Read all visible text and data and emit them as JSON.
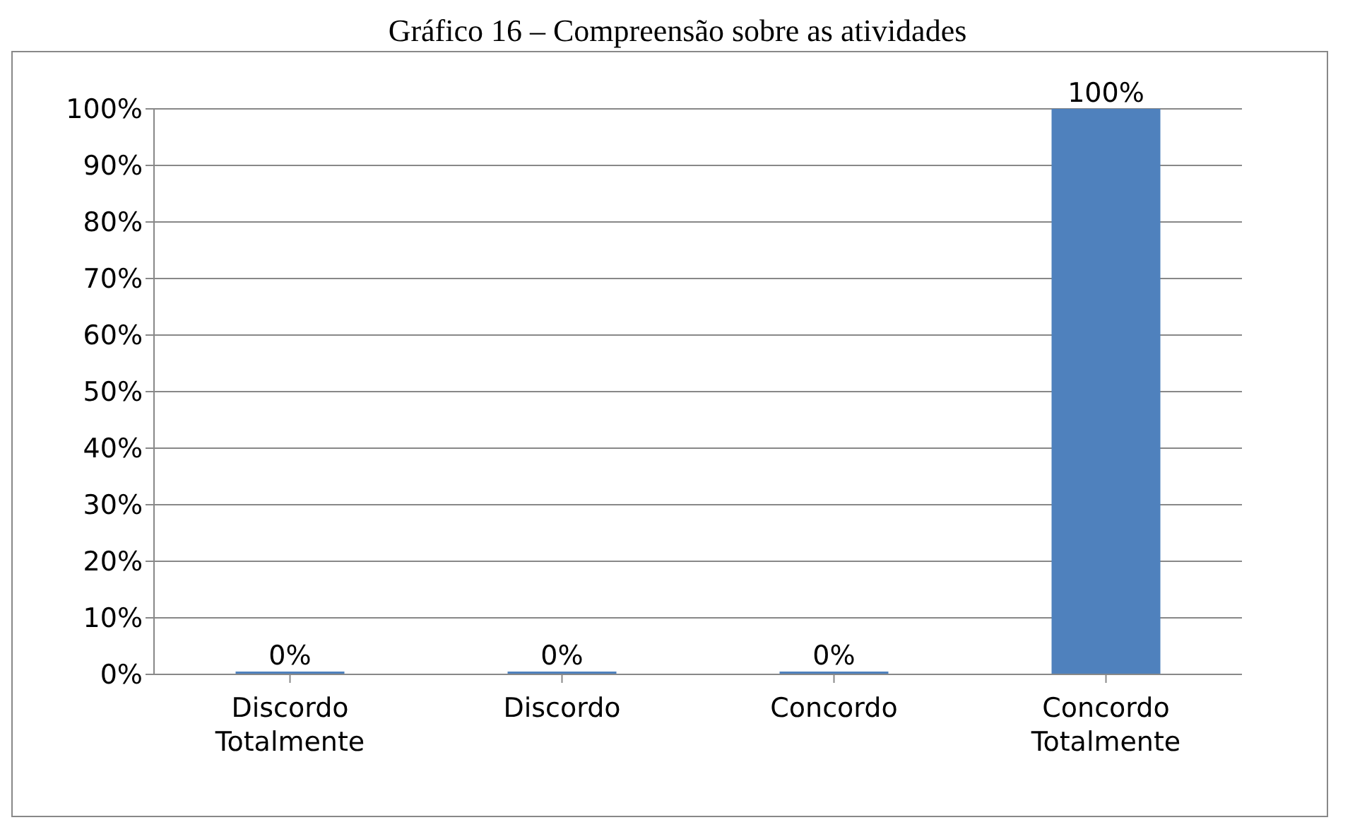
{
  "chart_data": {
    "type": "bar",
    "title": "Gráfico 16 – Compreensão sobre as atividades",
    "categories": [
      "Discordo Totalmente",
      "Discordo",
      "Concordo",
      "Concordo Totalmente"
    ],
    "values": [
      0,
      0,
      0,
      100
    ],
    "color": "#4f81bd",
    "value_labels": [
      "0%",
      "0%",
      "0%",
      "100%"
    ],
    "ylim": [
      0,
      100
    ],
    "yticks": [
      {
        "value": 0,
        "label": "0%"
      },
      {
        "value": 10,
        "label": "10%"
      },
      {
        "value": 20,
        "label": "20%"
      },
      {
        "value": 30,
        "label": "30%"
      },
      {
        "value": 40,
        "label": "40%"
      },
      {
        "value": 50,
        "label": "50%"
      },
      {
        "value": 60,
        "label": "60%"
      },
      {
        "value": 70,
        "label": "70%"
      },
      {
        "value": 80,
        "label": "80%"
      },
      {
        "value": 90,
        "label": "90%"
      },
      {
        "value": 100,
        "label": "100%"
      }
    ],
    "grid": "y",
    "legend": false
  }
}
